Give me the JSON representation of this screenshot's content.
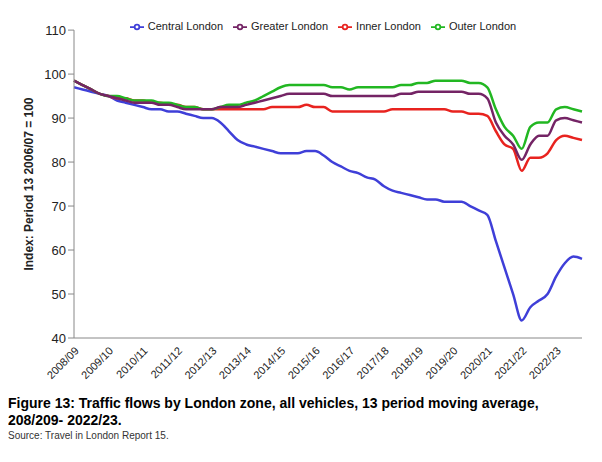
{
  "chart_data": {
    "type": "line",
    "title": "Figure 13: Traffic flows by London zone, all vehicles, 13 period moving average, 208/209- 2022/23.",
    "source": "Source: Travel in London Report 15.",
    "ylabel": "Index: Period 13 2006/07 = 100",
    "categories": [
      "2008/09",
      null,
      null,
      null,
      "2009/10",
      null,
      null,
      null,
      "2010/11",
      null,
      null,
      null,
      "2011/12",
      null,
      null,
      null,
      "2012/13",
      null,
      null,
      null,
      "2013/14",
      null,
      null,
      null,
      "2014/15",
      null,
      null,
      null,
      "2015/16",
      null,
      null,
      null,
      "2016/17",
      null,
      null,
      null,
      "2017/18",
      null,
      null,
      null,
      "2018/19",
      null,
      null,
      null,
      "2019/20",
      null,
      null,
      null,
      "2020/21",
      null,
      null,
      null,
      "2021/22",
      null,
      null,
      null,
      "2022/23",
      null,
      null,
      null
    ],
    "series": [
      {
        "name": "Central London",
        "color": "#3f3fd8",
        "values": [
          97,
          96.5,
          96,
          95.5,
          95,
          94,
          93.5,
          93,
          92.5,
          92,
          92,
          91.5,
          91.5,
          91,
          90.5,
          90,
          90,
          89,
          87,
          85,
          84,
          83.5,
          83,
          82.5,
          82,
          82,
          82,
          82.5,
          82.5,
          81.5,
          80,
          79,
          78,
          77.5,
          76.5,
          76,
          74.5,
          73.5,
          73,
          72.5,
          72,
          71.5,
          71.5,
          71,
          71,
          71,
          70,
          69,
          68,
          62,
          56,
          50,
          44,
          47,
          48.5,
          50,
          54,
          57,
          58.5,
          58
        ]
      },
      {
        "name": "Inner London",
        "color": "#e8231f",
        "values": [
          98.5,
          97.5,
          96.5,
          95.5,
          95,
          94.5,
          94.5,
          94,
          94,
          93.5,
          93.5,
          93,
          93,
          92.5,
          92.5,
          92,
          92,
          92,
          92,
          92,
          92,
          92,
          92,
          92.5,
          92.5,
          92.5,
          92.5,
          93,
          92.5,
          92.5,
          91.5,
          91.5,
          91.5,
          91.5,
          91.5,
          91.5,
          91.5,
          92,
          92,
          92,
          92,
          92,
          92,
          92,
          91.5,
          91.5,
          91,
          91,
          90.5,
          87,
          84,
          83,
          78,
          81,
          81,
          82,
          85,
          86,
          85.5,
          85
        ]
      },
      {
        "name": "Outer London",
        "color": "#22b722",
        "values": [
          98.5,
          97.5,
          96.5,
          95.5,
          95,
          95,
          94.5,
          94,
          94,
          94,
          93.5,
          93.5,
          93,
          92.5,
          92.5,
          92,
          92,
          92.5,
          93,
          93,
          93.5,
          94,
          95,
          96,
          97,
          97.5,
          97.5,
          97.5,
          97.5,
          97.5,
          97,
          97,
          96.5,
          97,
          97,
          97,
          97,
          97,
          97.5,
          97.5,
          98,
          98,
          98.5,
          98.5,
          98.5,
          98.5,
          98,
          98,
          97,
          92,
          88,
          86,
          83,
          88,
          89,
          89,
          92,
          92.5,
          92,
          91.5
        ]
      },
      {
        "name": "Greater London",
        "color": "#742465",
        "values": [
          98.5,
          97.5,
          96.5,
          95.5,
          95,
          94.5,
          94,
          93.5,
          93.5,
          93.5,
          93,
          93,
          92.5,
          92,
          92,
          92,
          92,
          92.5,
          92.5,
          92.5,
          93,
          93.5,
          94,
          94.5,
          95,
          95.5,
          95.5,
          95.5,
          95.5,
          95.5,
          95,
          95,
          95,
          95,
          95,
          95,
          95,
          95,
          95.5,
          95.5,
          96,
          96,
          96,
          96,
          96,
          96,
          95.5,
          95.5,
          94.5,
          89,
          86,
          84,
          80.5,
          84,
          86,
          86,
          89.5,
          90,
          89.5,
          89
        ]
      }
    ],
    "ylim": [
      40,
      110
    ],
    "yticks": [
      40,
      50,
      60,
      70,
      80,
      90,
      100,
      110
    ],
    "grid": false,
    "legend": "top"
  }
}
